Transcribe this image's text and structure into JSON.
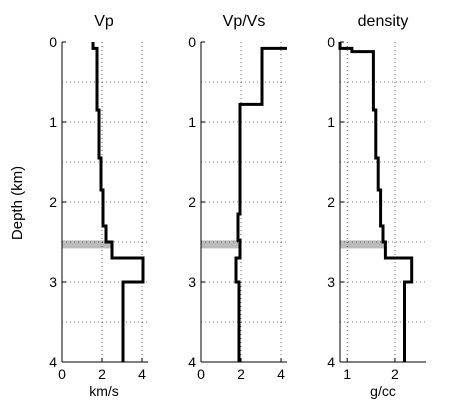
{
  "chart_data": [
    {
      "type": "line",
      "title": "Vp",
      "xlabel": "km/s",
      "ylabel": "Depth (km)",
      "xlim": [
        0,
        4.3
      ],
      "ylim": [
        4,
        0
      ],
      "xticks": [
        "0",
        "2",
        "4"
      ],
      "yticks": [
        "0",
        "1",
        "2",
        "3",
        "4"
      ],
      "grid": true,
      "x": [
        1.55,
        1.55,
        1.75,
        1.75,
        1.85,
        1.85,
        1.95,
        1.95,
        2.05,
        2.05,
        2.2,
        2.2,
        2.5,
        2.5,
        3.0,
        3.0,
        4.05,
        4.05,
        3.05,
        3.05
      ],
      "y": [
        0,
        0.08,
        0.08,
        0.85,
        0.85,
        1.45,
        1.45,
        1.85,
        1.85,
        2.3,
        2.3,
        2.5,
        2.5,
        2.7,
        2.7,
        2.7,
        2.7,
        3.0,
        3.0,
        4.0
      ],
      "highlight_band": {
        "y": [
          2.48,
          2.58
        ],
        "x_to": 2.5,
        "color": "#bbbbbb"
      }
    },
    {
      "type": "line",
      "title": "Vp/Vs",
      "xlabel": "",
      "ylabel": "",
      "xlim": [
        0,
        4.3
      ],
      "ylim": [
        4,
        0
      ],
      "xticks": [
        "0",
        "2",
        "4"
      ],
      "yticks": [
        "0",
        "1",
        "2",
        "3",
        "4"
      ],
      "grid": true,
      "x": [
        4.3,
        3.05,
        3.05,
        1.95,
        1.95,
        1.85,
        1.85,
        1.95,
        1.95,
        1.75,
        1.75,
        1.9,
        1.9
      ],
      "y": [
        0.08,
        0.08,
        0.78,
        0.78,
        2.15,
        2.15,
        2.48,
        2.48,
        2.7,
        2.7,
        3.0,
        3.0,
        4.0
      ],
      "highlight_band": {
        "y": [
          2.48,
          2.58
        ],
        "x_to": 1.95,
        "color": "#bbbbbb"
      }
    },
    {
      "type": "line",
      "title": "density",
      "xlabel": "g/cc",
      "ylabel": "",
      "xlim": [
        0.85,
        2.65
      ],
      "ylim": [
        4,
        0
      ],
      "xticks": [
        "1",
        "2"
      ],
      "xtick_values": [
        1,
        2
      ],
      "yticks": [
        "0",
        "1",
        "2",
        "3",
        "4"
      ],
      "grid": true,
      "x": [
        0.85,
        0.85,
        1.1,
        1.1,
        1.55,
        1.55,
        1.6,
        1.6,
        1.65,
        1.65,
        1.7,
        1.7,
        1.75,
        1.75,
        1.8,
        1.8,
        2.35,
        2.35,
        2.2,
        2.2
      ],
      "y": [
        0,
        0.08,
        0.08,
        0.12,
        0.12,
        0.85,
        0.85,
        1.45,
        1.45,
        1.85,
        1.85,
        2.3,
        2.3,
        2.5,
        2.5,
        2.7,
        2.7,
        3.0,
        3.0,
        4.0
      ],
      "highlight_band": {
        "y": [
          2.48,
          2.58
        ],
        "x_to": 1.8,
        "color": "#bbbbbb"
      }
    }
  ]
}
